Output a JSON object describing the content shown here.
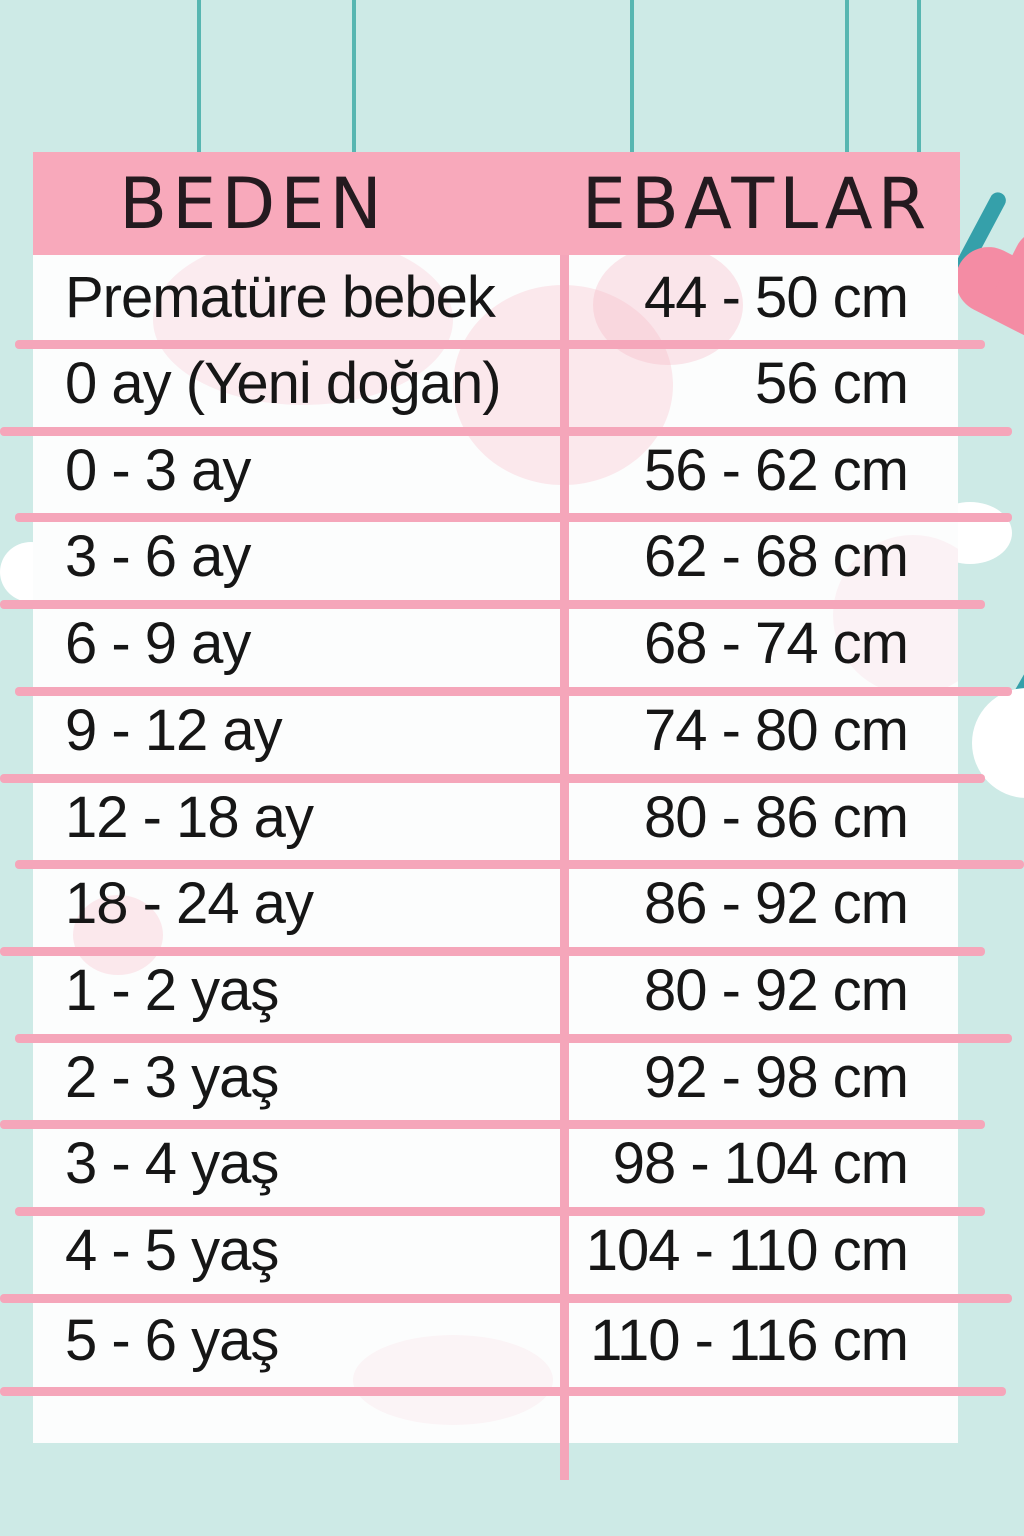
{
  "page": {
    "background_color": "#cdeae6",
    "accent_pink": "#f8a9bb",
    "line_pink": "#f5a6ba",
    "string_teal": "#57b6b1",
    "decor_teal": "#35a0aa",
    "decor_pink": "#f48ca4",
    "header_text_color": "#241a1f",
    "body_text_color": "#161616"
  },
  "chart_data": {
    "type": "table",
    "title": "Baby size chart (Turkish)",
    "columns": [
      "BEDEN",
      "EBATLAR"
    ],
    "rows": [
      [
        "Prematüre bebek",
        "44 - 50 cm"
      ],
      [
        "0 ay (Yeni doğan)",
        "56 cm"
      ],
      [
        "0 - 3 ay",
        "56 - 62 cm"
      ],
      [
        "3 - 6 ay",
        "62 - 68 cm"
      ],
      [
        "6 - 9 ay",
        "68 - 74 cm"
      ],
      [
        "9 - 12 ay",
        "74 - 80 cm"
      ],
      [
        "12 - 18 ay",
        "80 - 86 cm"
      ],
      [
        "18 - 24 ay",
        "86 - 92 cm"
      ],
      [
        "1 - 2 yaş",
        "80 - 92 cm"
      ],
      [
        "2 - 3 yaş",
        "92 - 98 cm"
      ],
      [
        "3 - 4 yaş",
        "98 - 104 cm"
      ],
      [
        "4 - 5 yaş",
        "104 - 110 cm"
      ],
      [
        "5 - 6 yaş",
        "110 - 116 cm"
      ],
      [
        "",
        ""
      ]
    ],
    "legend_position": "none",
    "grid": true
  },
  "decor_icons": [
    "hanging-string-icon",
    "heart-icon",
    "hanger-strap-icon",
    "crescent-icon",
    "cloud-icon"
  ]
}
